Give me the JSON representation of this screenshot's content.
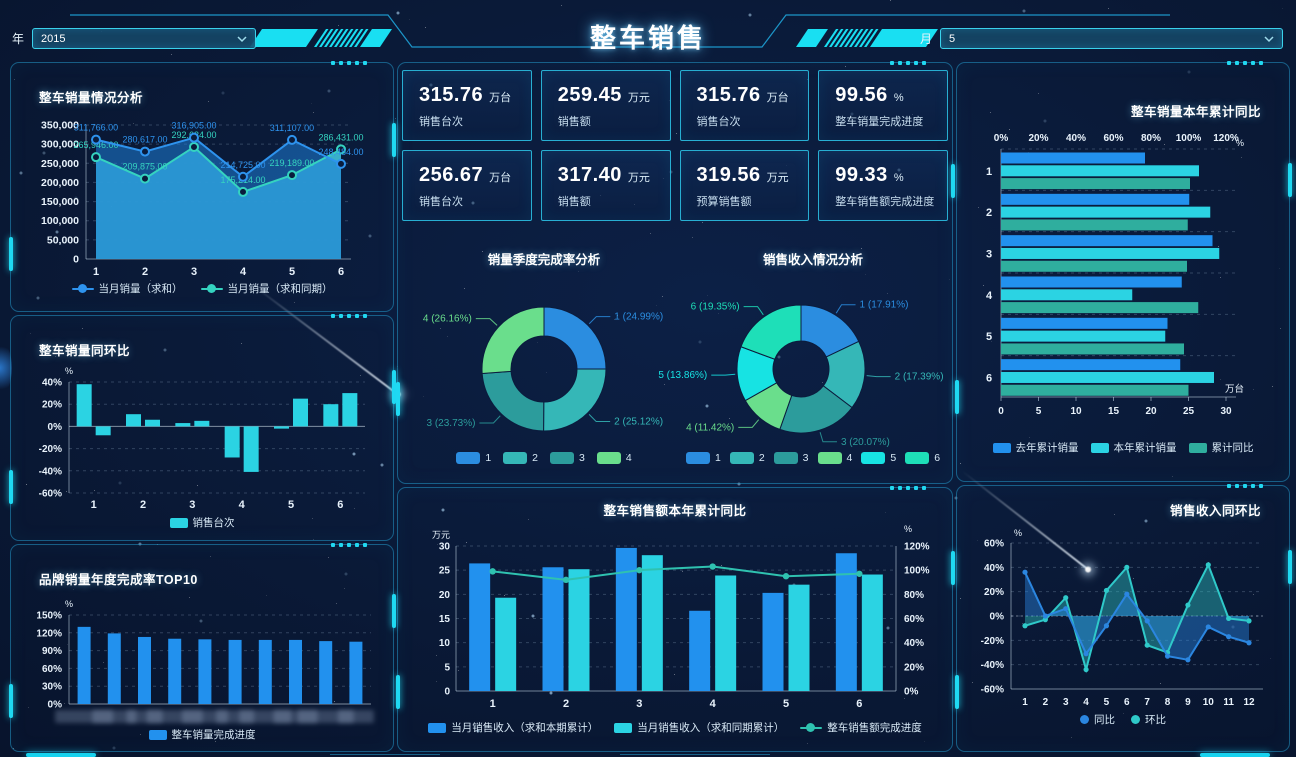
{
  "header": {
    "title": "整车销售",
    "year_label": "年",
    "year_value": "2015",
    "month_label": "月",
    "month_value": "5"
  },
  "kpi_cards": [
    {
      "value": "315.76",
      "unit": "万台",
      "label": "销售台次"
    },
    {
      "value": "259.45",
      "unit": "万元",
      "label": "销售额"
    },
    {
      "value": "315.76",
      "unit": "万台",
      "label": "销售台次"
    },
    {
      "value": "99.56",
      "unit": "%",
      "label": "整车销量完成进度"
    },
    {
      "value": "256.67",
      "unit": "万台",
      "label": "销售台次"
    },
    {
      "value": "317.40",
      "unit": "万元",
      "label": "销售额"
    },
    {
      "value": "319.56",
      "unit": "万元",
      "label": "预算销售额"
    },
    {
      "value": "99.33",
      "unit": "%",
      "label": "整车销售额完成进度"
    }
  ],
  "panels": {
    "sales_trend": {
      "title": "整车销量情况分析"
    },
    "yoy_mom": {
      "title": "整车销量同环比"
    },
    "top10": {
      "title": "品牌销量年度完成率TOP10"
    },
    "quarter_donut": {
      "title": "销量季度完成率分析"
    },
    "revenue_donut": {
      "title": "销售收入情况分析"
    },
    "revenue_ytd": {
      "title": "整车销售额本年累计同比"
    },
    "sales_ytd": {
      "title": "整车销量本年累计同比"
    },
    "revenue_trend": {
      "title": "销售收入同环比"
    }
  },
  "chart_data": [
    {
      "id": "sales_trend",
      "type": "area",
      "title": "整车销量情况分析",
      "x": [
        "1",
        "2",
        "3",
        "4",
        "5",
        "6"
      ],
      "ylim": [
        0,
        350000
      ],
      "yticks": [
        "0",
        "50,000",
        "100,000",
        "150,000",
        "200,000",
        "250,000",
        "300,000",
        "350,000"
      ],
      "series": [
        {
          "name": "当月销量（求和）",
          "color": "#2e93ee",
          "fill": "rgba(30,125,215,0.55)",
          "values": [
            311766,
            280617,
            316905,
            214725,
            311107,
            248484
          ],
          "labels": [
            "311,766.00",
            "280,617.00",
            "316,905.00",
            "214,725.00",
            "311,107.00",
            "248,484.00"
          ]
        },
        {
          "name": "当月销量（求和同期）",
          "color": "#35d3c0",
          "fill": "rgba(62,188,214,0.92)",
          "values": [
            265946,
            209875,
            292634,
            175214,
            219189,
            286431
          ],
          "labels": [
            "265,946.00",
            "209,875.00",
            "292,634.00",
            "175,214.00",
            "219,189.00",
            "286,431.00"
          ]
        }
      ]
    },
    {
      "id": "yoy_mom",
      "type": "paired_bar",
      "title": "整车销量同环比",
      "x": [
        "1",
        "2",
        "3",
        "4",
        "5",
        "6"
      ],
      "unit": "%",
      "ylim": [
        -60,
        40
      ],
      "yticks": [
        "-60%",
        "-40%",
        "-20%",
        "0%",
        "20%",
        "40%"
      ],
      "color": "#2bd3e3",
      "values": [
        [
          38,
          -8
        ],
        [
          11,
          6
        ],
        [
          3,
          5
        ],
        [
          -28,
          -41
        ],
        [
          -2,
          25
        ],
        [
          20,
          30
        ]
      ],
      "legend": [
        {
          "label": "销售台次",
          "color": "#2bd3e3",
          "marker": "rect"
        }
      ]
    },
    {
      "id": "top10",
      "type": "bar",
      "title": "品牌销量年度完成率TOP10",
      "unit": "%",
      "ylim": [
        0,
        150
      ],
      "yticks": [
        "0%",
        "30%",
        "60%",
        "90%",
        "120%",
        "150%"
      ],
      "color": "#2291ee",
      "values": [
        130,
        119,
        113,
        110,
        109,
        108,
        108,
        108,
        106,
        105
      ],
      "x_labels_redacted": true,
      "legend": [
        {
          "label": "整车销量完成进度",
          "color": "#2291ee",
          "marker": "rect"
        }
      ]
    },
    {
      "id": "quarter_donut",
      "type": "pie",
      "title": "销量季度完成率分析",
      "slices": [
        {
          "name": "1",
          "pct": 24.99,
          "color": "#2b8de0",
          "label": "1 (24.99%)"
        },
        {
          "name": "2",
          "pct": 25.12,
          "color": "#35b7b7",
          "label": "2 (25.12%)"
        },
        {
          "name": "3",
          "pct": 23.73,
          "color": "#2c9c9c",
          "label": "3 (23.73%)"
        },
        {
          "name": "4",
          "pct": 26.16,
          "color": "#6ade8c",
          "label": "4 (26.16%)"
        }
      ]
    },
    {
      "id": "revenue_donut",
      "type": "pie",
      "title": "销售收入情况分析",
      "slices": [
        {
          "name": "1",
          "pct": 17.91,
          "color": "#2b8de0",
          "label": "1 (17.91%)"
        },
        {
          "name": "2",
          "pct": 17.39,
          "color": "#35b7b7",
          "label": "2 (17.39%)"
        },
        {
          "name": "3",
          "pct": 20.07,
          "color": "#2c9c9c",
          "label": "3 (20.07%)"
        },
        {
          "name": "4",
          "pct": 11.42,
          "color": "#6ade8c",
          "label": "4 (11.42%)"
        },
        {
          "name": "5",
          "pct": 13.86,
          "color": "#17e3e3",
          "label": "5 (13.86%)"
        },
        {
          "name": "6",
          "pct": 19.35,
          "color": "#1edfb8",
          "label": "6 (19.35%)"
        }
      ]
    },
    {
      "id": "revenue_ytd",
      "type": "bar_line",
      "title": "整车销售额本年累计同比",
      "x": [
        "1",
        "2",
        "3",
        "4",
        "5",
        "6"
      ],
      "left_unit": "万元",
      "left_ylim": [
        0,
        30
      ],
      "left_yticks": [
        "0",
        "5",
        "10",
        "15",
        "20",
        "25",
        "30"
      ],
      "right_unit": "%",
      "right_ylim": [
        0,
        120
      ],
      "right_yticks": [
        "0%",
        "20%",
        "40%",
        "60%",
        "80%",
        "100%",
        "120%"
      ],
      "bars": [
        {
          "name": "当月销售收入（求和本期累计）",
          "color": "#2291ee",
          "values": [
            26.4,
            25.6,
            29.6,
            16.6,
            20.3,
            28.5
          ]
        },
        {
          "name": "当月销售收入（求和同期累计）",
          "color": "#2bd3e3",
          "values": [
            19.3,
            25.2,
            28.1,
            23.9,
            22.0,
            24.1
          ]
        }
      ],
      "line": {
        "name": "整车销售额完成进度",
        "color": "#2fc2b0",
        "values": [
          99,
          92,
          100,
          103,
          95,
          97
        ]
      }
    },
    {
      "id": "sales_ytd",
      "type": "hbar",
      "title": "整车销量本年累计同比",
      "categories": [
        "1",
        "2",
        "3",
        "4",
        "5",
        "6"
      ],
      "top_axis": {
        "unit": "%",
        "lim": [
          0,
          120
        ],
        "ticks": [
          "0%",
          "20%",
          "40%",
          "60%",
          "80%",
          "100%",
          "120%"
        ]
      },
      "bottom_axis": {
        "unit": "万台",
        "lim": [
          0,
          30
        ],
        "ticks": [
          "0",
          "5",
          "10",
          "15",
          "20",
          "25",
          "30"
        ]
      },
      "series": [
        {
          "name": "去年累计销量",
          "color": "#2291ee",
          "values": [
            19.2,
            25.1,
            28.2,
            24.1,
            22.2,
            23.9
          ]
        },
        {
          "name": "本年累计销量",
          "color": "#2bd3e3",
          "values": [
            26.4,
            27.9,
            29.1,
            17.5,
            21.9,
            28.4
          ]
        },
        {
          "name": "累计同比",
          "color": "#2fae9e",
          "values": [
            25.2,
            24.9,
            24.8,
            26.3,
            24.4,
            25.0
          ]
        }
      ]
    },
    {
      "id": "revenue_trend",
      "type": "area",
      "title": "销售收入同环比",
      "x": [
        "1",
        "2",
        "3",
        "4",
        "5",
        "6",
        "7",
        "8",
        "9",
        "10",
        "11",
        "12"
      ],
      "unit": "%",
      "ylim": [
        -60,
        60
      ],
      "yticks": [
        "-60%",
        "-40%",
        "-20%",
        "0%",
        "20%",
        "40%",
        "60%"
      ],
      "series": [
        {
          "name": "同比",
          "color": "#2b86e0",
          "fill": "rgba(43,134,224,0.45)",
          "values": [
            36,
            0,
            6,
            -31,
            -8,
            18,
            -4,
            -33,
            -36,
            -9,
            -17,
            -22
          ]
        },
        {
          "name": "环比",
          "color": "#2fc9c9",
          "fill": "rgba(47,201,201,0.42)",
          "values": [
            -8,
            -3,
            15,
            -44,
            21,
            40,
            -24,
            -30,
            9,
            42,
            -2,
            -4
          ]
        }
      ]
    }
  ]
}
